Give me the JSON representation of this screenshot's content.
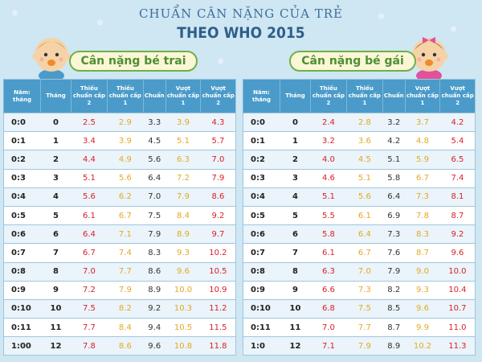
{
  "title": "CHUẨN CÂN NẶNG CỦA TRẺ",
  "subtitle": "THEO WHO 2015",
  "colors": {
    "background": "#cfe6f3",
    "header": "#4a9bc9",
    "red": "#d92027",
    "yellow": "#e4a823",
    "green": "#4d8f33"
  },
  "headers": {
    "age": "Năm: tháng",
    "month": "Tháng",
    "lack2": "Thiếu chuẩn cấp 2",
    "lack1": "Thiếu chuẩn cấp 1",
    "standard": "Chuẩn",
    "over1": "Vượt chuẩn cấp 1",
    "over2": "Vượt chuẩn cấp 2"
  },
  "boy": {
    "label": "Cân nặng bé trai",
    "rows": [
      [
        "0:0",
        "0",
        "2.5",
        "2.9",
        "3.3",
        "3.9",
        "4.3"
      ],
      [
        "0:1",
        "1",
        "3.4",
        "3.9",
        "4.5",
        "5.1",
        "5.7"
      ],
      [
        "0:2",
        "2",
        "4.4",
        "4.9",
        "5.6",
        "6.3",
        "7.0"
      ],
      [
        "0:3",
        "3",
        "5.1",
        "5.6",
        "6.4",
        "7.2",
        "7.9"
      ],
      [
        "0:4",
        "4",
        "5.6",
        "6.2",
        "7.0",
        "7.9",
        "8.6"
      ],
      [
        "0:5",
        "5",
        "6.1",
        "6.7",
        "7.5",
        "8.4",
        "9.2"
      ],
      [
        "0:6",
        "6",
        "6.4",
        "7.1",
        "7.9",
        "8.9",
        "9.7"
      ],
      [
        "0:7",
        "7",
        "6.7",
        "7.4",
        "8.3",
        "9.3",
        "10.2"
      ],
      [
        "0:8",
        "8",
        "7.0",
        "7.7",
        "8.6",
        "9.6",
        "10.5"
      ],
      [
        "0:9",
        "9",
        "7.2",
        "7.9",
        "8.9",
        "10.0",
        "10.9"
      ],
      [
        "0:10",
        "10",
        "7.5",
        "8.2",
        "9.2",
        "10.3",
        "11.2"
      ],
      [
        "0:11",
        "11",
        "7.7",
        "8.4",
        "9.4",
        "10.5",
        "11.5"
      ],
      [
        "1:00",
        "12",
        "7.8",
        "8.6",
        "9.6",
        "10.8",
        "11.8"
      ]
    ]
  },
  "girl": {
    "label": "Cân nặng bé gái",
    "rows": [
      [
        "0:0",
        "0",
        "2.4",
        "2.8",
        "3.2",
        "3.7",
        "4.2"
      ],
      [
        "0:1",
        "1",
        "3.2",
        "3.6",
        "4.2",
        "4.8",
        "5.4"
      ],
      [
        "0:2",
        "2",
        "4.0",
        "4.5",
        "5.1",
        "5.9",
        "6.5"
      ],
      [
        "0:3",
        "3",
        "4.6",
        "5.1",
        "5.8",
        "6.7",
        "7.4"
      ],
      [
        "0:4",
        "4",
        "5.1",
        "5.6",
        "6.4",
        "7.3",
        "8.1"
      ],
      [
        "0:5",
        "5",
        "5.5",
        "6.1",
        "6.9",
        "7.8",
        "8.7"
      ],
      [
        "0:6",
        "6",
        "5.8",
        "6.4",
        "7.3",
        "8.3",
        "9.2"
      ],
      [
        "0:7",
        "7",
        "6.1",
        "6.7",
        "7.6",
        "8.7",
        "9.6"
      ],
      [
        "0:8",
        "8",
        "6.3",
        "7.0",
        "7.9",
        "9.0",
        "10.0"
      ],
      [
        "0:9",
        "9",
        "6.6",
        "7.3",
        "8.2",
        "9.3",
        "10.4"
      ],
      [
        "0:10",
        "10",
        "6.8",
        "7.5",
        "8.5",
        "9.6",
        "10.7"
      ],
      [
        "0:11",
        "11",
        "7.0",
        "7.7",
        "8.7",
        "9.9",
        "11.0"
      ],
      [
        "1:0",
        "12",
        "7.1",
        "7.9",
        "8.9",
        "10.2",
        "11.3"
      ]
    ]
  },
  "icons": {
    "boy": "baby-boy-icon",
    "girl": "baby-girl-icon",
    "background": "snowflake-icon"
  }
}
